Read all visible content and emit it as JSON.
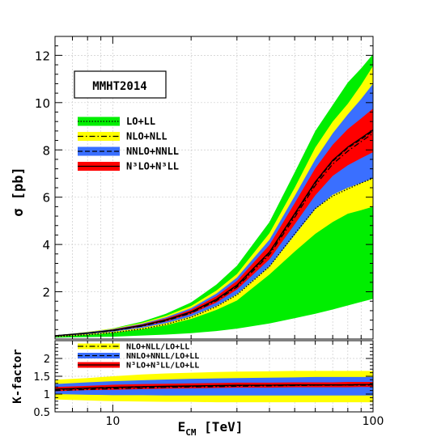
{
  "chart_data": [
    {
      "type": "area",
      "panel": "main",
      "ylabel": "σ [pb]",
      "box_label": "MMHT2014",
      "x_scale": "log",
      "xlim": [
        6,
        100
      ],
      "ylim": [
        0,
        12.8
      ],
      "y_ticks": [
        2,
        4,
        6,
        8,
        10,
        12
      ],
      "y_tick_labels": [
        "2",
        "4",
        "6",
        "8",
        "10",
        "12"
      ],
      "grid": true,
      "x": [
        6,
        8,
        10,
        13,
        16,
        20,
        25,
        30,
        40,
        50,
        60,
        70,
        80,
        90,
        100
      ],
      "series": [
        {
          "name": "LO+LL",
          "color": "#00ee00",
          "line": "dotted",
          "central": [
            0.1,
            0.18,
            0.27,
            0.43,
            0.62,
            0.92,
            1.37,
            1.87,
            3.07,
            4.45,
            5.52,
            6.05,
            6.35,
            6.6,
            6.8
          ],
          "lower": [
            0.06,
            0.08,
            0.1,
            0.15,
            0.19,
            0.25,
            0.34,
            0.44,
            0.66,
            0.88,
            1.07,
            1.25,
            1.42,
            1.57,
            1.7
          ],
          "upper": [
            0.14,
            0.3,
            0.45,
            0.74,
            1.07,
            1.55,
            2.3,
            3.1,
            4.95,
            7.05,
            8.8,
            9.9,
            10.85,
            11.45,
            12.05
          ]
        },
        {
          "name": "NLO+NLL",
          "color": "#ffff00",
          "line": "dash-dot",
          "central": [
            0.13,
            0.24,
            0.35,
            0.55,
            0.77,
            1.1,
            1.62,
            2.2,
            3.57,
            5.15,
            6.5,
            7.4,
            7.95,
            8.35,
            8.7
          ],
          "lower": [
            0.1,
            0.18,
            0.26,
            0.41,
            0.58,
            0.85,
            1.23,
            1.63,
            2.73,
            3.7,
            4.45,
            4.95,
            5.3,
            5.45,
            5.6
          ],
          "upper": [
            0.15,
            0.31,
            0.44,
            0.69,
            0.98,
            1.4,
            2.05,
            2.75,
            4.48,
            6.4,
            8.1,
            9.2,
            9.95,
            10.75,
            11.55
          ]
        },
        {
          "name": "NNLO+NNLL",
          "color": "#3a6fff",
          "line": "dashed",
          "central": [
            0.14,
            0.25,
            0.37,
            0.57,
            0.8,
            1.14,
            1.66,
            2.26,
            3.65,
            5.25,
            6.6,
            7.52,
            8.08,
            8.45,
            8.8
          ],
          "lower": [
            0.12,
            0.21,
            0.31,
            0.48,
            0.67,
            0.96,
            1.4,
            1.9,
            3.07,
            4.4,
            5.5,
            6.1,
            6.4,
            6.6,
            6.8
          ],
          "upper": [
            0.16,
            0.29,
            0.42,
            0.65,
            0.92,
            1.31,
            1.92,
            2.6,
            4.2,
            6.05,
            7.6,
            8.7,
            9.5,
            10.15,
            10.8
          ]
        },
        {
          "name": "N³LO+N³LL",
          "color": "#ff0000",
          "line": "solid",
          "central": [
            0.14,
            0.25,
            0.37,
            0.58,
            0.81,
            1.15,
            1.68,
            2.28,
            3.68,
            5.3,
            6.65,
            7.56,
            8.12,
            8.5,
            8.85
          ],
          "lower": [
            0.13,
            0.23,
            0.34,
            0.53,
            0.74,
            1.06,
            1.54,
            2.09,
            3.37,
            4.85,
            6.08,
            6.9,
            7.35,
            7.65,
            7.9
          ],
          "upper": [
            0.15,
            0.27,
            0.4,
            0.62,
            0.87,
            1.24,
            1.81,
            2.46,
            3.98,
            5.75,
            7.22,
            8.22,
            8.88,
            9.33,
            9.75
          ]
        }
      ],
      "legend": {
        "entries": [
          "LO+LL",
          "NLO+NLL",
          "NNLO+NNLL",
          "N³LO+N³LL"
        ],
        "placement": "upper-left"
      }
    },
    {
      "type": "area",
      "panel": "ratio",
      "ylabel": "K-factor",
      "xlabel": "E",
      "xlabel_sub": "CM",
      "xlabel_unit": "[TeV]",
      "x_scale": "log",
      "xlim": [
        6,
        100
      ],
      "ylim": [
        0.5,
        2.5
      ],
      "y_ticks": [
        0.5,
        1,
        1.5,
        2
      ],
      "y_tick_labels": [
        "0.5",
        "1",
        "1.5",
        "2"
      ],
      "x_ticks": [
        10,
        100
      ],
      "x_tick_labels": [
        "10",
        "100"
      ],
      "grid": true,
      "x": [
        6,
        8,
        10,
        13,
        16,
        20,
        25,
        30,
        40,
        50,
        60,
        70,
        80,
        90,
        100
      ],
      "series": [
        {
          "name": "NLO+NLL/LO+LL",
          "color": "#ffff00",
          "line": "dash-dot",
          "central": [
            1.1,
            1.13,
            1.15,
            1.17,
            1.19,
            1.2,
            1.21,
            1.22,
            1.23,
            1.24,
            1.25,
            1.25,
            1.25,
            1.25,
            1.25
          ],
          "lower": [
            0.85,
            0.82,
            0.8,
            0.79,
            0.78,
            0.78,
            0.77,
            0.77,
            0.77,
            0.77,
            0.77,
            0.77,
            0.77,
            0.77,
            0.77
          ],
          "upper": [
            1.4,
            1.45,
            1.5,
            1.55,
            1.58,
            1.6,
            1.62,
            1.63,
            1.64,
            1.65,
            1.65,
            1.65,
            1.65,
            1.65,
            1.65
          ]
        },
        {
          "name": "NNLO+NNLL/LO+LL",
          "color": "#3a6fff",
          "line": "dashed",
          "central": [
            1.13,
            1.16,
            1.18,
            1.2,
            1.21,
            1.22,
            1.23,
            1.24,
            1.25,
            1.25,
            1.25,
            1.25,
            1.26,
            1.26,
            1.26
          ],
          "lower": [
            1.0,
            0.98,
            0.97,
            0.97,
            0.96,
            0.96,
            0.96,
            0.96,
            0.96,
            0.96,
            0.96,
            0.96,
            0.96,
            0.96,
            0.96
          ],
          "upper": [
            1.28,
            1.33,
            1.36,
            1.39,
            1.41,
            1.43,
            1.44,
            1.45,
            1.46,
            1.47,
            1.48,
            1.48,
            1.48,
            1.48,
            1.48
          ]
        },
        {
          "name": "N³LO+N³LL/LO+LL",
          "color": "#ff0000",
          "line": "solid",
          "central": [
            1.14,
            1.17,
            1.19,
            1.21,
            1.22,
            1.23,
            1.24,
            1.25,
            1.25,
            1.26,
            1.26,
            1.26,
            1.26,
            1.27,
            1.27
          ],
          "lower": [
            1.08,
            1.11,
            1.12,
            1.14,
            1.15,
            1.16,
            1.17,
            1.18,
            1.18,
            1.19,
            1.19,
            1.19,
            1.19,
            1.2,
            1.2
          ],
          "upper": [
            1.2,
            1.23,
            1.26,
            1.28,
            1.29,
            1.3,
            1.31,
            1.32,
            1.32,
            1.33,
            1.33,
            1.33,
            1.34,
            1.34,
            1.34
          ]
        }
      ],
      "legend": {
        "entries": [
          "NLO+NLL/LO+LL",
          "NNLO+NNLL/LO+LL",
          "N³LO+N³LL/LO+LL"
        ],
        "placement": "upper-left"
      }
    }
  ]
}
